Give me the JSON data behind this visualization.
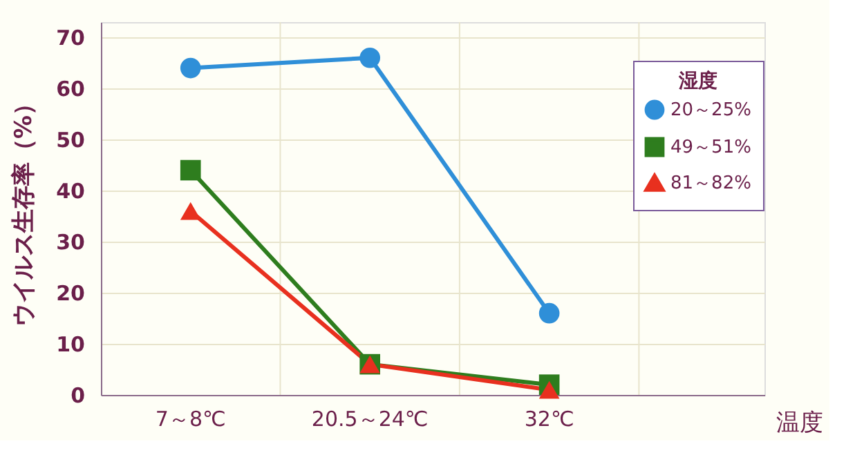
{
  "chart_data": {
    "type": "line",
    "xlabel": "温度",
    "ylabel": "ウイルス生存率（%）",
    "legend_title": "湿度",
    "categories": [
      "7～8℃",
      "20.5～24℃",
      "32℃"
    ],
    "series": [
      {
        "name": "20～25%",
        "color": "#2f8fd8",
        "marker": "circle",
        "values": [
          64,
          66,
          16
        ]
      },
      {
        "name": "49～51%",
        "color": "#2e7d1e",
        "marker": "square",
        "values": [
          44,
          6,
          2
        ]
      },
      {
        "name": "81～82%",
        "color": "#e8301f",
        "marker": "triangle",
        "values": [
          36,
          6,
          1
        ]
      }
    ],
    "ylim": [
      0,
      73
    ],
    "yticks": [
      0,
      10,
      20,
      30,
      40,
      50,
      60,
      70
    ],
    "grid": true,
    "legend": "top right",
    "line_style": "solid"
  }
}
